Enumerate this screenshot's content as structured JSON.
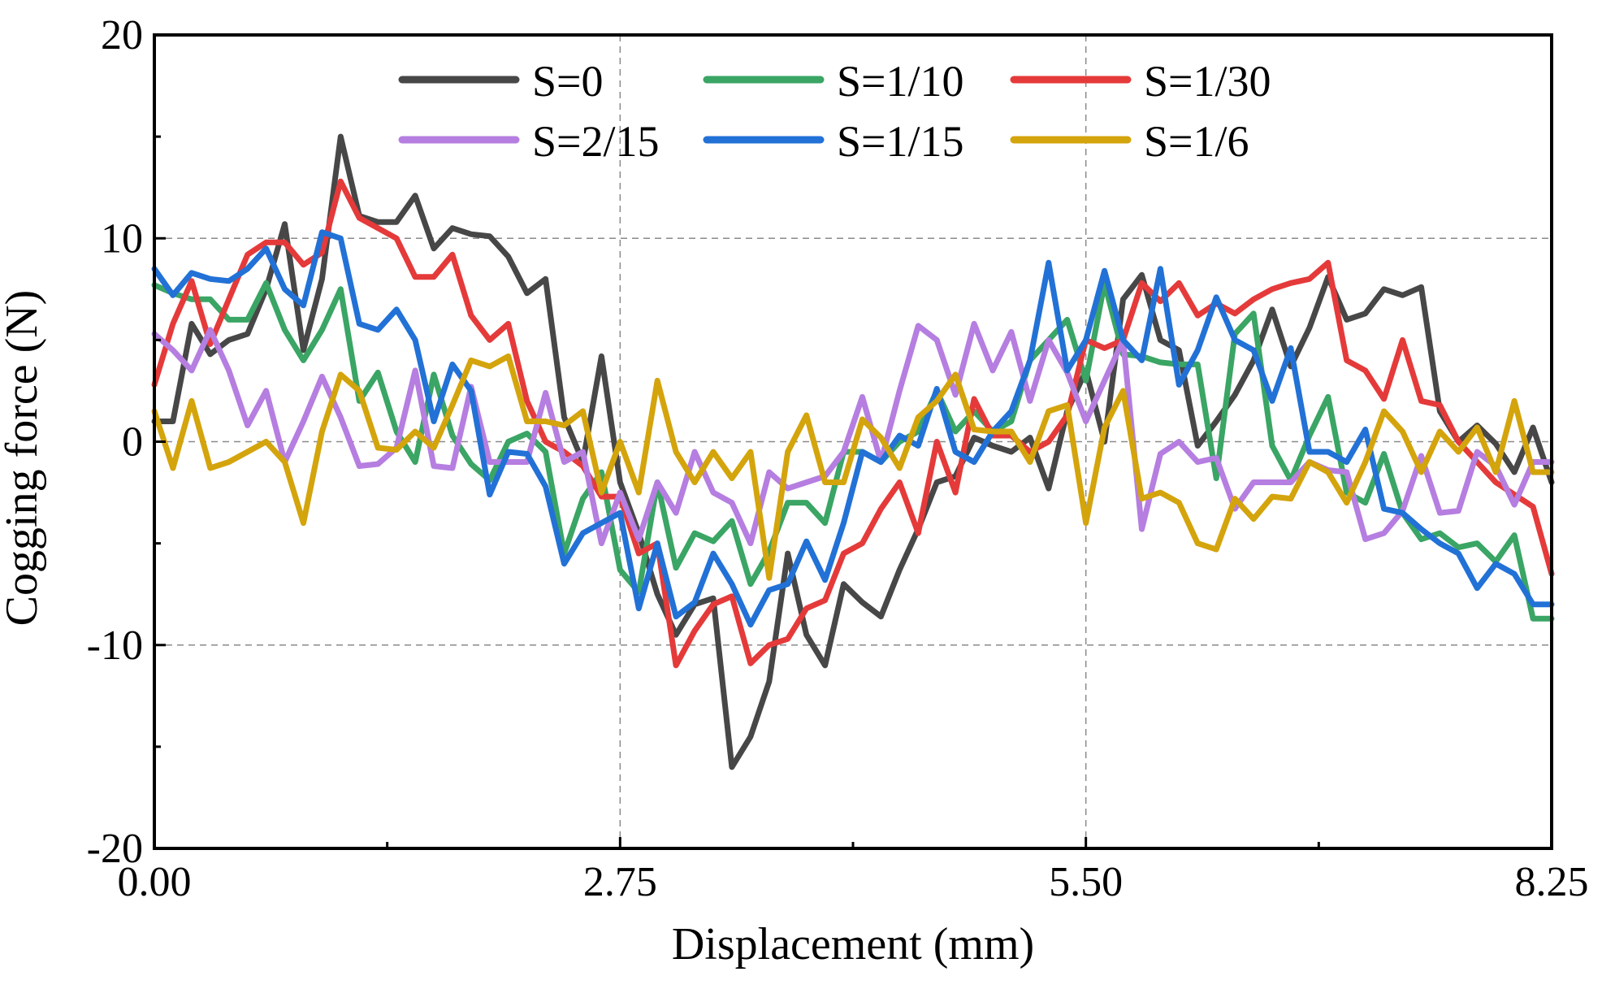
{
  "chart_data": {
    "type": "line",
    "xlabel": "Displacement (mm)",
    "ylabel": "Cogging force (N)",
    "xlim": [
      0,
      8.25
    ],
    "ylim": [
      -20,
      20
    ],
    "x_ticks": [
      0,
      2.75,
      5.5,
      8.25
    ],
    "x_tick_labels": [
      "0.00",
      "2.75",
      "5.50",
      "8.25"
    ],
    "x_minor_ticks": [
      1.375,
      4.125,
      6.875
    ],
    "y_ticks": [
      -20,
      -10,
      0,
      10,
      20
    ],
    "y_tick_labels": [
      "-20",
      "-10",
      "0",
      "10",
      "20"
    ],
    "y_minor_ticks": [
      -15,
      -5,
      5,
      15
    ],
    "grid": true,
    "legend": "top-center",
    "series": [
      {
        "name": "S=0",
        "color": "#474747",
        "x": [
          0,
          0.11,
          0.22,
          0.33,
          0.44,
          0.55,
          0.66,
          0.77,
          0.88,
          0.99,
          1.1,
          1.21,
          1.32,
          1.43,
          1.54,
          1.65,
          1.76,
          1.87,
          1.98,
          2.09,
          2.2,
          2.31,
          2.42,
          2.53,
          2.64,
          2.75,
          2.86,
          2.97,
          3.08,
          3.19,
          3.3,
          3.41,
          3.52,
          3.63,
          3.74,
          3.85,
          3.96,
          4.07,
          4.18,
          4.29,
          4.4,
          4.51,
          4.62,
          4.73,
          4.84,
          4.95,
          5.06,
          5.17,
          5.28,
          5.39,
          5.5,
          5.61,
          5.72,
          5.83,
          5.94,
          6.05,
          6.16,
          6.27,
          6.38,
          6.49,
          6.6,
          6.71,
          6.82,
          6.93,
          7.04,
          7.15,
          7.26,
          7.37,
          7.48,
          7.59,
          7.7,
          7.81,
          7.92,
          8.03,
          8.14,
          8.25
        ],
        "y": [
          1.0,
          1.0,
          5.8,
          4.3,
          5.0,
          5.3,
          7.5,
          10.7,
          4.5,
          8.0,
          15.0,
          11.1,
          10.8,
          10.8,
          12.1,
          9.5,
          10.5,
          10.2,
          10.1,
          9.1,
          7.3,
          8.0,
          1.2,
          -1.0,
          4.2,
          -2.0,
          -4.5,
          -7.5,
          -9.5,
          -8.0,
          -7.7,
          -16.0,
          -14.5,
          -11.8,
          -5.5,
          -9.5,
          -11.0,
          -7.0,
          -7.9,
          -8.6,
          -6.3,
          -4.3,
          -2.0,
          -1.7,
          0.2,
          -0.2,
          -0.5,
          0.2,
          -2.3,
          1.5,
          3.5,
          0.0,
          7.0,
          8.2,
          5.0,
          4.5,
          -0.2,
          1.0,
          2.3,
          4.0,
          6.5,
          3.7,
          5.6,
          8.1,
          6.0,
          6.3,
          7.5,
          7.2,
          7.6,
          1.5,
          0.0,
          0.8,
          -0.1,
          -1.5,
          0.7,
          -2.0
        ]
      },
      {
        "name": "S=1/10",
        "color": "#3aa564",
        "x": [
          0,
          0.11,
          0.22,
          0.33,
          0.44,
          0.55,
          0.66,
          0.77,
          0.88,
          0.99,
          1.1,
          1.21,
          1.32,
          1.43,
          1.54,
          1.65,
          1.76,
          1.87,
          1.98,
          2.09,
          2.2,
          2.31,
          2.42,
          2.53,
          2.64,
          2.75,
          2.86,
          2.97,
          3.08,
          3.19,
          3.3,
          3.41,
          3.52,
          3.63,
          3.74,
          3.85,
          3.96,
          4.07,
          4.18,
          4.29,
          4.4,
          4.51,
          4.62,
          4.73,
          4.84,
          4.95,
          5.06,
          5.17,
          5.28,
          5.39,
          5.5,
          5.61,
          5.72,
          5.83,
          5.94,
          6.05,
          6.16,
          6.27,
          6.38,
          6.49,
          6.6,
          6.71,
          6.82,
          6.93,
          7.04,
          7.15,
          7.26,
          7.37,
          7.48,
          7.59,
          7.7,
          7.81,
          7.92,
          8.03,
          8.14,
          8.25
        ],
        "y": [
          7.7,
          7.3,
          7.0,
          7.0,
          6.0,
          6.0,
          7.8,
          5.5,
          4.0,
          5.5,
          7.5,
          2.0,
          3.4,
          0.5,
          -1.0,
          3.3,
          0.3,
          -1.1,
          -1.9,
          0.0,
          0.4,
          -0.5,
          -5.5,
          -2.8,
          -1.5,
          -6.3,
          -7.4,
          -2.0,
          -6.2,
          -4.5,
          -4.9,
          -3.9,
          -7.0,
          -5.4,
          -3.0,
          -3.0,
          -4.0,
          -0.5,
          -0.5,
          -1.0,
          0.0,
          0.5,
          2.5,
          0.5,
          1.5,
          0.5,
          1.0,
          4.0,
          5.0,
          6.0,
          3.0,
          7.8,
          4.3,
          4.2,
          3.9,
          3.8,
          3.8,
          -1.8,
          5.3,
          6.3,
          -0.2,
          -1.9,
          0.3,
          2.2,
          -2.5,
          -3.0,
          -0.6,
          -3.5,
          -4.8,
          -4.5,
          -5.2,
          -5.0,
          -5.9,
          -4.6,
          -8.7,
          -8.7
        ]
      },
      {
        "name": "S=1/30",
        "color": "#e53a3a",
        "x": [
          0,
          0.11,
          0.22,
          0.33,
          0.44,
          0.55,
          0.66,
          0.77,
          0.88,
          0.99,
          1.1,
          1.21,
          1.32,
          1.43,
          1.54,
          1.65,
          1.76,
          1.87,
          1.98,
          2.09,
          2.2,
          2.31,
          2.42,
          2.53,
          2.64,
          2.75,
          2.86,
          2.97,
          3.08,
          3.19,
          3.3,
          3.41,
          3.52,
          3.63,
          3.74,
          3.85,
          3.96,
          4.07,
          4.18,
          4.29,
          4.4,
          4.51,
          4.62,
          4.73,
          4.84,
          4.95,
          5.06,
          5.17,
          5.28,
          5.39,
          5.5,
          5.61,
          5.72,
          5.83,
          5.94,
          6.05,
          6.16,
          6.27,
          6.38,
          6.49,
          6.6,
          6.71,
          6.82,
          6.93,
          7.04,
          7.15,
          7.26,
          7.37,
          7.48,
          7.59,
          7.7,
          7.81,
          7.92,
          8.03,
          8.14,
          8.25
        ],
        "y": [
          2.8,
          5.8,
          7.9,
          4.8,
          7.0,
          9.2,
          9.8,
          9.8,
          8.7,
          9.3,
          12.8,
          11.0,
          10.5,
          10.0,
          8.1,
          8.1,
          9.2,
          6.2,
          5.0,
          5.8,
          2.0,
          0.0,
          -0.5,
          -1.2,
          -2.7,
          -2.7,
          -5.5,
          -5.0,
          -11.0,
          -9.3,
          -8.0,
          -7.6,
          -10.9,
          -10.0,
          -9.7,
          -8.2,
          -7.8,
          -5.5,
          -5.0,
          -3.3,
          -2.0,
          -4.5,
          0.0,
          -2.5,
          2.1,
          0.3,
          0.3,
          -0.5,
          0.0,
          1.3,
          5.0,
          4.6,
          5.0,
          7.8,
          6.9,
          7.8,
          6.2,
          6.8,
          6.3,
          7.0,
          7.5,
          7.8,
          8.0,
          8.8,
          4.0,
          3.5,
          2.1,
          5.0,
          2.0,
          1.8,
          0.0,
          -1.0,
          -2.0,
          -2.6,
          -3.2,
          -6.5
        ]
      },
      {
        "name": "S=2/15",
        "color": "#b57ee0",
        "x": [
          0,
          0.11,
          0.22,
          0.33,
          0.44,
          0.55,
          0.66,
          0.77,
          0.88,
          0.99,
          1.1,
          1.21,
          1.32,
          1.43,
          1.54,
          1.65,
          1.76,
          1.87,
          1.98,
          2.09,
          2.2,
          2.31,
          2.42,
          2.53,
          2.64,
          2.75,
          2.86,
          2.97,
          3.08,
          3.19,
          3.3,
          3.41,
          3.52,
          3.63,
          3.74,
          3.85,
          3.96,
          4.07,
          4.18,
          4.29,
          4.4,
          4.51,
          4.62,
          4.73,
          4.84,
          4.95,
          5.06,
          5.17,
          5.28,
          5.39,
          5.5,
          5.61,
          5.72,
          5.83,
          5.94,
          6.05,
          6.16,
          6.27,
          6.38,
          6.49,
          6.6,
          6.71,
          6.82,
          6.93,
          7.04,
          7.15,
          7.26,
          7.37,
          7.48,
          7.59,
          7.7,
          7.81,
          7.92,
          8.03,
          8.14,
          8.25
        ],
        "y": [
          5.3,
          4.5,
          3.5,
          5.5,
          3.5,
          0.8,
          2.5,
          -1.0,
          1.0,
          3.2,
          1.2,
          -1.2,
          -1.1,
          -0.3,
          3.5,
          -1.2,
          -1.3,
          2.7,
          -1.0,
          -1.0,
          -1.0,
          2.4,
          -1.0,
          -0.5,
          -5.0,
          -2.5,
          -4.8,
          -2.0,
          -3.5,
          -0.5,
          -2.5,
          -3.0,
          -5.0,
          -1.5,
          -2.3,
          -2.0,
          -1.7,
          -0.5,
          2.2,
          -1.0,
          2.5,
          5.7,
          5.0,
          2.3,
          5.8,
          3.5,
          5.4,
          2.0,
          5.0,
          3.4,
          1.0,
          3.0,
          5.0,
          -4.3,
          -0.6,
          0.0,
          -1.0,
          -0.8,
          -3.3,
          -2.0,
          -2.0,
          -2.0,
          -1.0,
          -1.4,
          -1.5,
          -4.8,
          -4.5,
          -3.4,
          -0.7,
          -3.5,
          -3.4,
          -0.5,
          -1.2,
          -3.1,
          -1.0,
          -1.0
        ]
      },
      {
        "name": "S=1/15",
        "color": "#2271d6",
        "x": [
          0,
          0.11,
          0.22,
          0.33,
          0.44,
          0.55,
          0.66,
          0.77,
          0.88,
          0.99,
          1.1,
          1.21,
          1.32,
          1.43,
          1.54,
          1.65,
          1.76,
          1.87,
          1.98,
          2.09,
          2.2,
          2.31,
          2.42,
          2.53,
          2.64,
          2.75,
          2.86,
          2.97,
          3.08,
          3.19,
          3.3,
          3.41,
          3.52,
          3.63,
          3.74,
          3.85,
          3.96,
          4.07,
          4.18,
          4.29,
          4.4,
          4.51,
          4.62,
          4.73,
          4.84,
          4.95,
          5.06,
          5.17,
          5.28,
          5.39,
          5.5,
          5.61,
          5.72,
          5.83,
          5.94,
          6.05,
          6.16,
          6.27,
          6.38,
          6.49,
          6.6,
          6.71,
          6.82,
          6.93,
          7.04,
          7.15,
          7.26,
          7.37,
          7.48,
          7.59,
          7.7,
          7.81,
          7.92,
          8.03,
          8.14,
          8.25
        ],
        "y": [
          8.5,
          7.2,
          8.3,
          8.0,
          7.9,
          8.5,
          9.5,
          7.5,
          6.7,
          10.3,
          10.0,
          5.8,
          5.5,
          6.5,
          5.0,
          1.0,
          3.8,
          2.5,
          -2.6,
          -0.5,
          -0.6,
          -2.2,
          -6.0,
          -4.5,
          -4.0,
          -3.5,
          -8.2,
          -5.0,
          -8.6,
          -7.9,
          -5.5,
          -7.0,
          -9.0,
          -7.3,
          -7.0,
          -4.9,
          -6.8,
          -4.0,
          -0.5,
          -1.0,
          0.3,
          -0.2,
          2.6,
          -0.5,
          -1.0,
          0.5,
          1.5,
          4.0,
          8.8,
          3.5,
          5.0,
          8.4,
          5.0,
          4.0,
          8.5,
          2.8,
          4.5,
          7.1,
          5.0,
          4.5,
          2.0,
          4.6,
          -0.5,
          -0.5,
          -1.0,
          0.6,
          -3.3,
          -3.5,
          -4.3,
          -5.0,
          -5.5,
          -7.2,
          -6.0,
          -6.5,
          -8.0,
          -8.0
        ]
      },
      {
        "name": "S=1/6",
        "color": "#d4a40c",
        "x": [
          0,
          0.11,
          0.22,
          0.33,
          0.44,
          0.55,
          0.66,
          0.77,
          0.88,
          0.99,
          1.1,
          1.21,
          1.32,
          1.43,
          1.54,
          1.65,
          1.76,
          1.87,
          1.98,
          2.09,
          2.2,
          2.31,
          2.42,
          2.53,
          2.64,
          2.75,
          2.86,
          2.97,
          3.08,
          3.19,
          3.3,
          3.41,
          3.52,
          3.63,
          3.74,
          3.85,
          3.96,
          4.07,
          4.18,
          4.29,
          4.4,
          4.51,
          4.62,
          4.73,
          4.84,
          4.95,
          5.06,
          5.17,
          5.28,
          5.39,
          5.5,
          5.61,
          5.72,
          5.83,
          5.94,
          6.05,
          6.16,
          6.27,
          6.38,
          6.49,
          6.6,
          6.71,
          6.82,
          6.93,
          7.04,
          7.15,
          7.26,
          7.37,
          7.48,
          7.59,
          7.7,
          7.81,
          7.92,
          8.03,
          8.14,
          8.25
        ],
        "y": [
          1.5,
          -1.3,
          2.0,
          -1.3,
          -1.0,
          -0.5,
          0.0,
          -1.0,
          -4.0,
          0.5,
          3.3,
          2.5,
          -0.3,
          -0.4,
          0.5,
          -0.3,
          1.8,
          4.0,
          3.7,
          4.2,
          1.0,
          1.0,
          0.8,
          1.5,
          -2.5,
          0.0,
          -2.5,
          3.0,
          -0.5,
          -2.0,
          -0.5,
          -1.8,
          -0.5,
          -6.7,
          -0.5,
          1.3,
          -2.0,
          -2.0,
          1.1,
          0.2,
          -1.3,
          1.2,
          2.0,
          3.3,
          0.6,
          0.5,
          0.5,
          -1.0,
          1.5,
          1.8,
          -4.0,
          0.7,
          2.5,
          -2.8,
          -2.5,
          -3.0,
          -5.0,
          -5.3,
          -2.8,
          -3.8,
          -2.7,
          -2.8,
          -1.0,
          -1.5,
          -3.0,
          -1.0,
          1.5,
          0.5,
          -1.5,
          0.5,
          -0.5,
          0.7,
          -1.5,
          2.0,
          -1.5,
          -1.5
        ]
      }
    ]
  }
}
